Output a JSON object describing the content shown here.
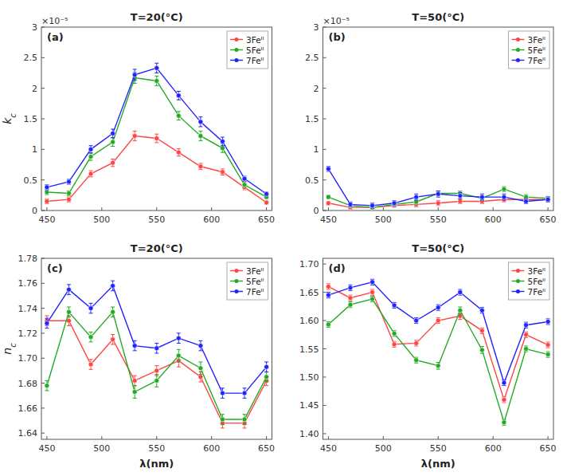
{
  "chart_data": [
    {
      "type": "line",
      "title": "T=20(°C)",
      "ylabel": "kc",
      "annotations": [
        "(a)",
        "×10⁻⁵"
      ],
      "x": [
        450,
        470,
        490,
        510,
        530,
        550,
        570,
        590,
        610,
        630,
        650
      ],
      "xlim": [
        445,
        655
      ],
      "xticks": [
        450,
        500,
        550,
        600,
        650
      ],
      "ylim": [
        0,
        3
      ],
      "yticks": [
        0,
        0.5,
        1,
        1.5,
        2,
        2.5,
        3
      ],
      "grid": false,
      "legend": "upper right",
      "marker": "circle",
      "line_style": "solid",
      "series": [
        {
          "name": "3Feᴵᴵ",
          "color": "#FF4444",
          "values": [
            0.15,
            0.18,
            0.6,
            0.78,
            1.22,
            1.18,
            0.95,
            0.72,
            0.63,
            0.38,
            0.13
          ],
          "errors": [
            0.04,
            0.04,
            0.05,
            0.06,
            0.08,
            0.07,
            0.06,
            0.05,
            0.05,
            0.04,
            0.03
          ]
        },
        {
          "name": "5Feᴵᴵ",
          "color": "#22AA22",
          "values": [
            0.3,
            0.28,
            0.88,
            1.12,
            2.17,
            2.12,
            1.55,
            1.22,
            1.02,
            0.42,
            0.22
          ],
          "errors": [
            0.04,
            0.04,
            0.06,
            0.07,
            0.09,
            0.08,
            0.07,
            0.08,
            0.07,
            0.04,
            0.03
          ]
        },
        {
          "name": "7Feᴵᴵ",
          "color": "#2222FF",
          "values": [
            0.38,
            0.47,
            1.0,
            1.26,
            2.22,
            2.33,
            1.88,
            1.45,
            1.13,
            0.52,
            0.27
          ],
          "errors": [
            0.04,
            0.04,
            0.06,
            0.07,
            0.09,
            0.08,
            0.07,
            0.08,
            0.07,
            0.04,
            0.03
          ]
        }
      ]
    },
    {
      "type": "line",
      "title": "T=50(°C)",
      "annotations": [
        "(b)",
        "×10⁻⁵"
      ],
      "x": [
        450,
        470,
        490,
        510,
        530,
        550,
        570,
        590,
        610,
        630,
        650
      ],
      "xlim": [
        445,
        655
      ],
      "xticks": [
        450,
        500,
        550,
        600,
        650
      ],
      "ylim": [
        0,
        3
      ],
      "yticks": [
        0,
        0.5,
        1,
        1.5,
        2,
        2.5,
        3
      ],
      "grid": false,
      "legend": "upper right",
      "marker": "circle",
      "line_style": "solid",
      "series": [
        {
          "name": "3Feᴵᴵ",
          "color": "#FF4444",
          "values": [
            0.12,
            0.05,
            0.05,
            0.08,
            0.1,
            0.12,
            0.15,
            0.15,
            0.18,
            0.18,
            0.18
          ],
          "errors": [
            0.03,
            0.03,
            0.03,
            0.03,
            0.04,
            0.04,
            0.04,
            0.04,
            0.04,
            0.04,
            0.03
          ]
        },
        {
          "name": "5Feᴵᴵ",
          "color": "#22AA22",
          "values": [
            0.22,
            0.08,
            0.05,
            0.1,
            0.14,
            0.28,
            0.28,
            0.2,
            0.35,
            0.22,
            0.2
          ],
          "errors": [
            0.03,
            0.03,
            0.03,
            0.03,
            0.04,
            0.04,
            0.04,
            0.04,
            0.04,
            0.04,
            0.03
          ]
        },
        {
          "name": "7Feᴵᴵ",
          "color": "#2222FF",
          "values": [
            0.68,
            0.1,
            0.08,
            0.12,
            0.22,
            0.27,
            0.24,
            0.22,
            0.22,
            0.15,
            0.18
          ],
          "errors": [
            0.04,
            0.04,
            0.04,
            0.04,
            0.05,
            0.05,
            0.05,
            0.05,
            0.05,
            0.04,
            0.04
          ]
        }
      ]
    },
    {
      "type": "line",
      "title": "T=20(°C)",
      "xlabel": "λ(nm)",
      "ylabel": "nc",
      "annotations": [
        "(c)"
      ],
      "x": [
        450,
        470,
        490,
        510,
        530,
        550,
        570,
        590,
        610,
        630,
        650
      ],
      "xlim": [
        445,
        655
      ],
      "xticks": [
        450,
        500,
        550,
        600,
        650
      ],
      "ylim": [
        1.635,
        1.78
      ],
      "yticks": [
        1.64,
        1.66,
        1.68,
        {
          "value": 1.7,
          "label": "1.70"
        },
        1.72,
        1.74,
        1.76,
        1.78
      ],
      "grid": false,
      "legend": "upper right",
      "marker": "circle",
      "line_style": "solid",
      "series": [
        {
          "name": "3Feᴵᴵ",
          "color": "#FF4444",
          "values": [
            1.73,
            1.73,
            1.695,
            1.715,
            1.682,
            1.69,
            1.698,
            1.685,
            1.648,
            1.648,
            1.682
          ],
          "errors": [
            0.004,
            0.004,
            0.004,
            0.004,
            0.004,
            0.004,
            0.005,
            0.004,
            0.004,
            0.004,
            0.004
          ]
        },
        {
          "name": "5Feᴵᴵ",
          "color": "#22AA22",
          "values": [
            1.678,
            1.737,
            1.717,
            1.737,
            1.673,
            1.682,
            1.702,
            1.692,
            1.651,
            1.651,
            1.685
          ],
          "errors": [
            0.004,
            0.004,
            0.004,
            0.004,
            0.005,
            0.005,
            0.005,
            0.005,
            0.004,
            0.004,
            0.004
          ]
        },
        {
          "name": "7Feᴵᴵ",
          "color": "#2222FF",
          "values": [
            1.728,
            1.755,
            1.74,
            1.758,
            1.71,
            1.708,
            1.716,
            1.71,
            1.672,
            1.672,
            1.693
          ],
          "errors": [
            0.004,
            0.004,
            0.004,
            0.004,
            0.004,
            0.004,
            0.004,
            0.004,
            0.004,
            0.004,
            0.004
          ]
        }
      ]
    },
    {
      "type": "line",
      "title": "T=50(°C)",
      "xlabel": "λ(nm)",
      "annotations": [
        "(d)"
      ],
      "x": [
        450,
        470,
        490,
        510,
        530,
        550,
        570,
        590,
        610,
        630,
        650
      ],
      "xlim": [
        445,
        655
      ],
      "xticks": [
        450,
        500,
        550,
        600,
        650
      ],
      "ylim": [
        1.39,
        1.71
      ],
      "yticks": [
        {
          "value": 1.4,
          "label": "1.40"
        },
        1.45,
        {
          "value": 1.5,
          "label": "1.50"
        },
        1.55,
        {
          "value": 1.6,
          "label": "1.60"
        },
        1.65,
        {
          "value": 1.7,
          "label": "1.70"
        }
      ],
      "grid": false,
      "legend": "upper right",
      "marker": "circle",
      "line_style": "solid",
      "series": [
        {
          "name": "3Feᴵᴵ",
          "color": "#FF4444",
          "values": [
            1.66,
            1.64,
            1.65,
            1.558,
            1.56,
            1.6,
            1.608,
            1.582,
            1.46,
            1.575,
            1.557
          ],
          "errors": [
            0.005,
            0.005,
            0.005,
            0.005,
            0.005,
            0.005,
            0.006,
            0.005,
            0.005,
            0.005,
            0.005
          ]
        },
        {
          "name": "5Feᴵᴵ",
          "color": "#22AA22",
          "values": [
            1.593,
            1.628,
            1.638,
            1.577,
            1.53,
            1.52,
            1.618,
            1.548,
            1.42,
            1.55,
            1.54
          ],
          "errors": [
            0.005,
            0.005,
            0.005,
            0.005,
            0.005,
            0.006,
            0.006,
            0.006,
            0.005,
            0.005,
            0.005
          ]
        },
        {
          "name": "7Feᴵᴵ",
          "color": "#2222FF",
          "values": [
            1.645,
            1.658,
            1.668,
            1.627,
            1.6,
            1.623,
            1.65,
            1.618,
            1.49,
            1.592,
            1.598
          ],
          "errors": [
            0.005,
            0.005,
            0.005,
            0.005,
            0.005,
            0.005,
            0.005,
            0.005,
            0.005,
            0.005,
            0.005
          ]
        }
      ]
    }
  ]
}
